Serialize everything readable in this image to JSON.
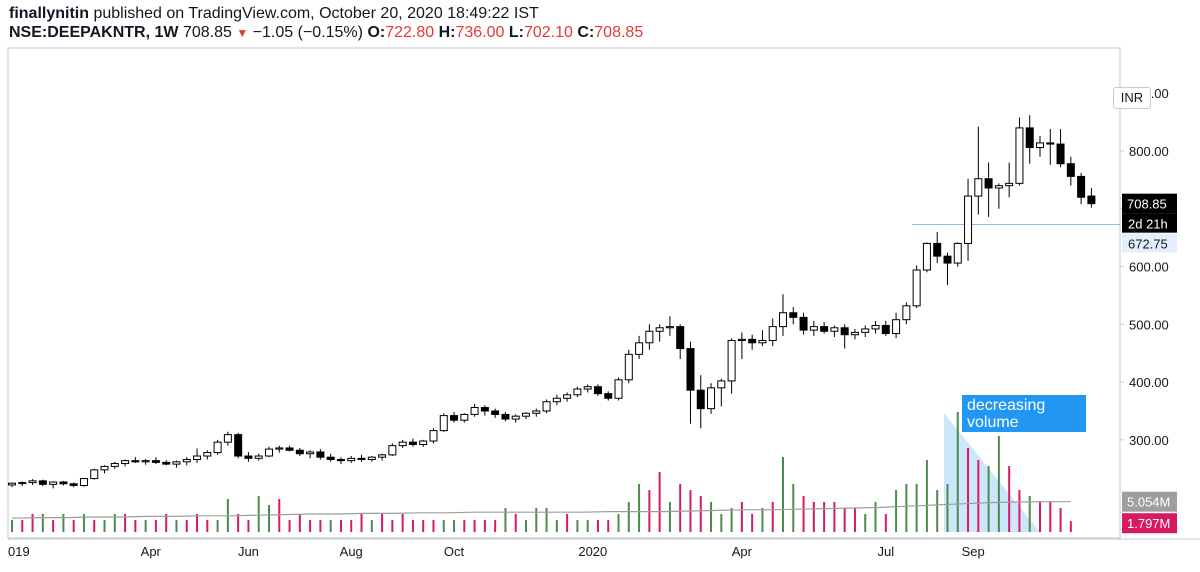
{
  "header": {
    "user": "finallynitin",
    "published": " published on TradingView.com, October 20, 2020 18:49:22 IST",
    "symbol": "NSE:DEEPAKNTR, 1W",
    "last": "708.85",
    "change": "−1.05 (−0.15%)",
    "open_label": "O:",
    "open": "722.80",
    "high_label": "H:",
    "high": "736.00",
    "low_label": "L:",
    "low": "702.10",
    "close_label": "C:",
    "close": "708.85"
  },
  "currency_button": "INR",
  "annotation": {
    "line1": "decreasing",
    "line2": "volume"
  },
  "colors": {
    "up_volume": "#26a69a",
    "down_volume": "#ef5350",
    "annotation_bg": "#2196f3",
    "price_tag": "#000000",
    "line_tag": "#e3effd"
  },
  "chart_data": {
    "type": "candlestick",
    "symbol": "NSE:DEEPAKNTR",
    "interval": "1W",
    "y_axis": {
      "ticks": [
        "900.00",
        "800.00",
        "700.00",
        "600.00",
        "500.00",
        "400.00",
        "300.00"
      ],
      "ylim": [
        225,
        935
      ]
    },
    "x_axis": {
      "ticks": [
        "019",
        "Apr",
        "Jun",
        "Aug",
        "Oct",
        "2020",
        "Apr",
        "Jul",
        "Sep"
      ]
    },
    "price_labels": {
      "last": "708.85",
      "countdown": "2d 21h",
      "horizontal_line": "672.75"
    },
    "volume_labels": {
      "ma": "5.054M",
      "last": "1.797M"
    },
    "candles": [
      [
        222,
        226,
        218,
        225
      ],
      [
        225,
        228,
        220,
        226
      ],
      [
        226,
        232,
        222,
        229
      ],
      [
        229,
        231,
        220,
        223
      ],
      [
        223,
        228,
        216,
        227
      ],
      [
        227,
        229,
        221,
        224
      ],
      [
        224,
        226,
        218,
        221
      ],
      [
        221,
        234,
        219,
        233
      ],
      [
        233,
        250,
        231,
        248
      ],
      [
        248,
        256,
        242,
        254
      ],
      [
        254,
        262,
        250,
        259
      ],
      [
        259,
        266,
        254,
        264
      ],
      [
        264,
        270,
        260,
        262
      ],
      [
        262,
        267,
        257,
        264
      ],
      [
        264,
        270,
        258,
        261
      ],
      [
        261,
        265,
        256,
        258
      ],
      [
        258,
        264,
        252,
        262
      ],
      [
        262,
        270,
        256,
        266
      ],
      [
        266,
        285,
        260,
        272
      ],
      [
        272,
        282,
        266,
        278
      ],
      [
        278,
        300,
        274,
        296
      ],
      [
        296,
        314,
        290,
        309
      ],
      [
        309,
        312,
        268,
        272
      ],
      [
        272,
        279,
        262,
        268
      ],
      [
        268,
        276,
        264,
        272
      ],
      [
        272,
        288,
        270,
        284
      ],
      [
        284,
        290,
        278,
        286
      ],
      [
        286,
        290,
        280,
        282
      ],
      [
        282,
        286,
        272,
        276
      ],
      [
        276,
        282,
        268,
        279
      ],
      [
        279,
        284,
        266,
        270
      ],
      [
        270,
        276,
        262,
        266
      ],
      [
        266,
        270,
        258,
        264
      ],
      [
        264,
        272,
        260,
        268
      ],
      [
        268,
        274,
        262,
        266
      ],
      [
        266,
        272,
        262,
        270
      ],
      [
        270,
        276,
        264,
        274
      ],
      [
        274,
        294,
        272,
        290
      ],
      [
        290,
        300,
        286,
        296
      ],
      [
        296,
        302,
        288,
        292
      ],
      [
        292,
        300,
        288,
        298
      ],
      [
        298,
        320,
        294,
        316
      ],
      [
        316,
        346,
        314,
        342
      ],
      [
        342,
        348,
        330,
        334
      ],
      [
        334,
        346,
        330,
        344
      ],
      [
        344,
        362,
        340,
        356
      ],
      [
        356,
        360,
        342,
        350
      ],
      [
        350,
        354,
        338,
        344
      ],
      [
        344,
        348,
        332,
        336
      ],
      [
        336,
        344,
        330,
        341
      ],
      [
        341,
        348,
        336,
        346
      ],
      [
        346,
        354,
        340,
        350
      ],
      [
        350,
        370,
        346,
        366
      ],
      [
        366,
        378,
        360,
        372
      ],
      [
        372,
        382,
        366,
        378
      ],
      [
        378,
        392,
        374,
        388
      ],
      [
        388,
        396,
        382,
        392
      ],
      [
        392,
        396,
        376,
        380
      ],
      [
        380,
        384,
        368,
        372
      ],
      [
        372,
        408,
        368,
        404
      ],
      [
        404,
        456,
        398,
        448
      ],
      [
        448,
        480,
        440,
        468
      ],
      [
        468,
        500,
        456,
        488
      ],
      [
        488,
        500,
        470,
        494
      ],
      [
        494,
        514,
        480,
        496
      ],
      [
        496,
        500,
        440,
        458
      ],
      [
        458,
        470,
        328,
        386
      ],
      [
        386,
        412,
        320,
        354
      ],
      [
        354,
        398,
        345,
        390
      ],
      [
        390,
        406,
        358,
        402
      ],
      [
        402,
        476,
        380,
        472
      ],
      [
        472,
        486,
        440,
        474
      ],
      [
        474,
        482,
        456,
        468
      ],
      [
        468,
        490,
        462,
        472
      ],
      [
        472,
        510,
        462,
        496
      ],
      [
        496,
        552,
        480,
        520
      ],
      [
        520,
        530,
        500,
        512
      ],
      [
        512,
        520,
        482,
        490
      ],
      [
        490,
        506,
        480,
        496
      ],
      [
        496,
        504,
        484,
        488
      ],
      [
        488,
        498,
        478,
        494
      ],
      [
        494,
        500,
        458,
        482
      ],
      [
        482,
        492,
        474,
        486
      ],
      [
        486,
        498,
        478,
        492
      ],
      [
        492,
        506,
        484,
        498
      ],
      [
        498,
        506,
        480,
        484
      ],
      [
        484,
        520,
        476,
        508
      ],
      [
        508,
        538,
        500,
        532
      ],
      [
        532,
        602,
        528,
        594
      ],
      [
        594,
        642,
        590,
        640
      ],
      [
        640,
        660,
        606,
        618
      ],
      [
        618,
        624,
        568,
        606
      ],
      [
        606,
        642,
        600,
        640
      ],
      [
        640,
        752,
        610,
        722
      ],
      [
        722,
        842,
        690,
        752
      ],
      [
        752,
        780,
        686,
        736
      ],
      [
        736,
        744,
        700,
        740
      ],
      [
        740,
        780,
        720,
        744
      ],
      [
        744,
        858,
        740,
        840
      ],
      [
        840,
        862,
        778,
        806
      ],
      [
        806,
        826,
        790,
        814
      ],
      [
        814,
        838,
        776,
        812
      ],
      [
        812,
        838,
        772,
        778
      ],
      [
        778,
        790,
        740,
        756
      ],
      [
        756,
        762,
        708,
        720
      ],
      [
        722,
        736,
        702,
        708.85
      ]
    ],
    "volume": [
      [
        2,
        0
      ],
      [
        2,
        1
      ],
      [
        3,
        1
      ],
      [
        3,
        0
      ],
      [
        2,
        1
      ],
      [
        3,
        0
      ],
      [
        2,
        1
      ],
      [
        3,
        0
      ],
      [
        2,
        1
      ],
      [
        2,
        0
      ],
      [
        3,
        0
      ],
      [
        3,
        1
      ],
      [
        2,
        1
      ],
      [
        2,
        0
      ],
      [
        2,
        1
      ],
      [
        3,
        1
      ],
      [
        2,
        0
      ],
      [
        2,
        1
      ],
      [
        3,
        1
      ],
      [
        2,
        1
      ],
      [
        2,
        0
      ],
      [
        5.5,
        0
      ],
      [
        3,
        1
      ],
      [
        2,
        1
      ],
      [
        6,
        0
      ],
      [
        4.5,
        0
      ],
      [
        5.5,
        1
      ],
      [
        2,
        1
      ],
      [
        3,
        1
      ],
      [
        2,
        1
      ],
      [
        2,
        1
      ],
      [
        2,
        0
      ],
      [
        2,
        1
      ],
      [
        2,
        1
      ],
      [
        3,
        1
      ],
      [
        2,
        0
      ],
      [
        3,
        1
      ],
      [
        2,
        1
      ],
      [
        3,
        1
      ],
      [
        2,
        1
      ],
      [
        2,
        1
      ],
      [
        2,
        1
      ],
      [
        2,
        0
      ],
      [
        2,
        0
      ],
      [
        2,
        1
      ],
      [
        2,
        1
      ],
      [
        2,
        1
      ],
      [
        2,
        1
      ],
      [
        4,
        0
      ],
      [
        3,
        1
      ],
      [
        2,
        0
      ],
      [
        4,
        0
      ],
      [
        4,
        0
      ],
      [
        2,
        0
      ],
      [
        3,
        1
      ],
      [
        2,
        0
      ],
      [
        2,
        0
      ],
      [
        2,
        1
      ],
      [
        2,
        1
      ],
      [
        3,
        0
      ],
      [
        5,
        0
      ],
      [
        8,
        0
      ],
      [
        7,
        1
      ],
      [
        10,
        1
      ],
      [
        5,
        0
      ],
      [
        8,
        1
      ],
      [
        7,
        1
      ],
      [
        6,
        1
      ],
      [
        5,
        0
      ],
      [
        3,
        0
      ],
      [
        4,
        0
      ],
      [
        5,
        1
      ],
      [
        3,
        1
      ],
      [
        4,
        0
      ],
      [
        5,
        1
      ],
      [
        12.5,
        0
      ],
      [
        8,
        0
      ],
      [
        6,
        1
      ],
      [
        5,
        1
      ],
      [
        5,
        1
      ],
      [
        5,
        1
      ],
      [
        4,
        1
      ],
      [
        4,
        1
      ],
      [
        3,
        0
      ],
      [
        5,
        0
      ],
      [
        3,
        1
      ],
      [
        7,
        0
      ],
      [
        8,
        0
      ],
      [
        8,
        0
      ],
      [
        12,
        0
      ],
      [
        7,
        0
      ],
      [
        8,
        0
      ],
      [
        20,
        0
      ],
      [
        14,
        1
      ],
      [
        12,
        1
      ],
      [
        11,
        0
      ],
      [
        16,
        0
      ],
      [
        11,
        1
      ],
      [
        7,
        1
      ],
      [
        6,
        0
      ],
      [
        5,
        1
      ],
      [
        5,
        1
      ],
      [
        4,
        1
      ],
      [
        1.797,
        1
      ]
    ],
    "volume_ma": [
      2.3,
      2.4,
      2.4,
      2.5,
      2.5,
      2.6,
      2.6,
      2.7,
      2.7,
      2.8,
      2.9,
      3.0,
      3.0,
      3.1,
      3.1,
      3.2,
      3.2,
      3.3,
      3.3,
      3.3,
      3.3,
      3.3,
      3.4,
      3.4,
      3.4,
      3.5,
      3.6,
      3.7,
      3.7,
      3.8,
      3.9,
      4.0,
      4.1,
      4.3,
      4.5,
      4.7,
      4.9,
      5.0,
      5.054,
      5.054
    ]
  }
}
